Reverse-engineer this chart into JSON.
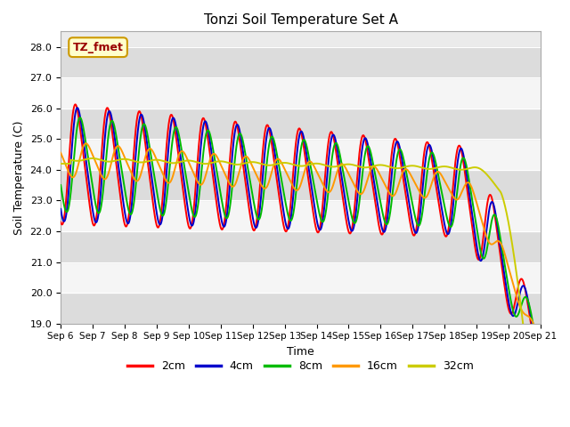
{
  "title": "Tonzi Soil Temperature Set A",
  "xlabel": "Time",
  "ylabel": "Soil Temperature (C)",
  "ylim": [
    19.0,
    28.5
  ],
  "xlim": [
    0,
    360
  ],
  "annotation": "TZ_fmet",
  "series_labels": [
    "2cm",
    "4cm",
    "8cm",
    "16cm",
    "32cm"
  ],
  "series_colors": [
    "#ff0000",
    "#0000cc",
    "#00bb00",
    "#ff9900",
    "#cccc00"
  ],
  "xtick_positions": [
    0,
    24,
    48,
    72,
    96,
    120,
    144,
    168,
    192,
    216,
    240,
    264,
    288,
    312,
    336,
    360
  ],
  "xtick_labels": [
    "Sep 6",
    "Sep 7",
    "Sep 8",
    "Sep 9",
    "Sep 10",
    "Sep 11",
    "Sep 12",
    "Sep 13",
    "Sep 14",
    "Sep 15",
    "Sep 16",
    "Sep 17",
    "Sep 18",
    "Sep 19",
    "Sep 20",
    "Sep 21"
  ],
  "ytick_positions": [
    19.0,
    20.0,
    21.0,
    22.0,
    23.0,
    24.0,
    25.0,
    26.0,
    27.0,
    28.0
  ],
  "background_color": "#ffffff",
  "plot_bg_color": "#ebebeb",
  "band_light": "#f5f5f5",
  "band_dark": "#dcdcdc",
  "line_width": 1.4,
  "legend_pos": "lower center"
}
